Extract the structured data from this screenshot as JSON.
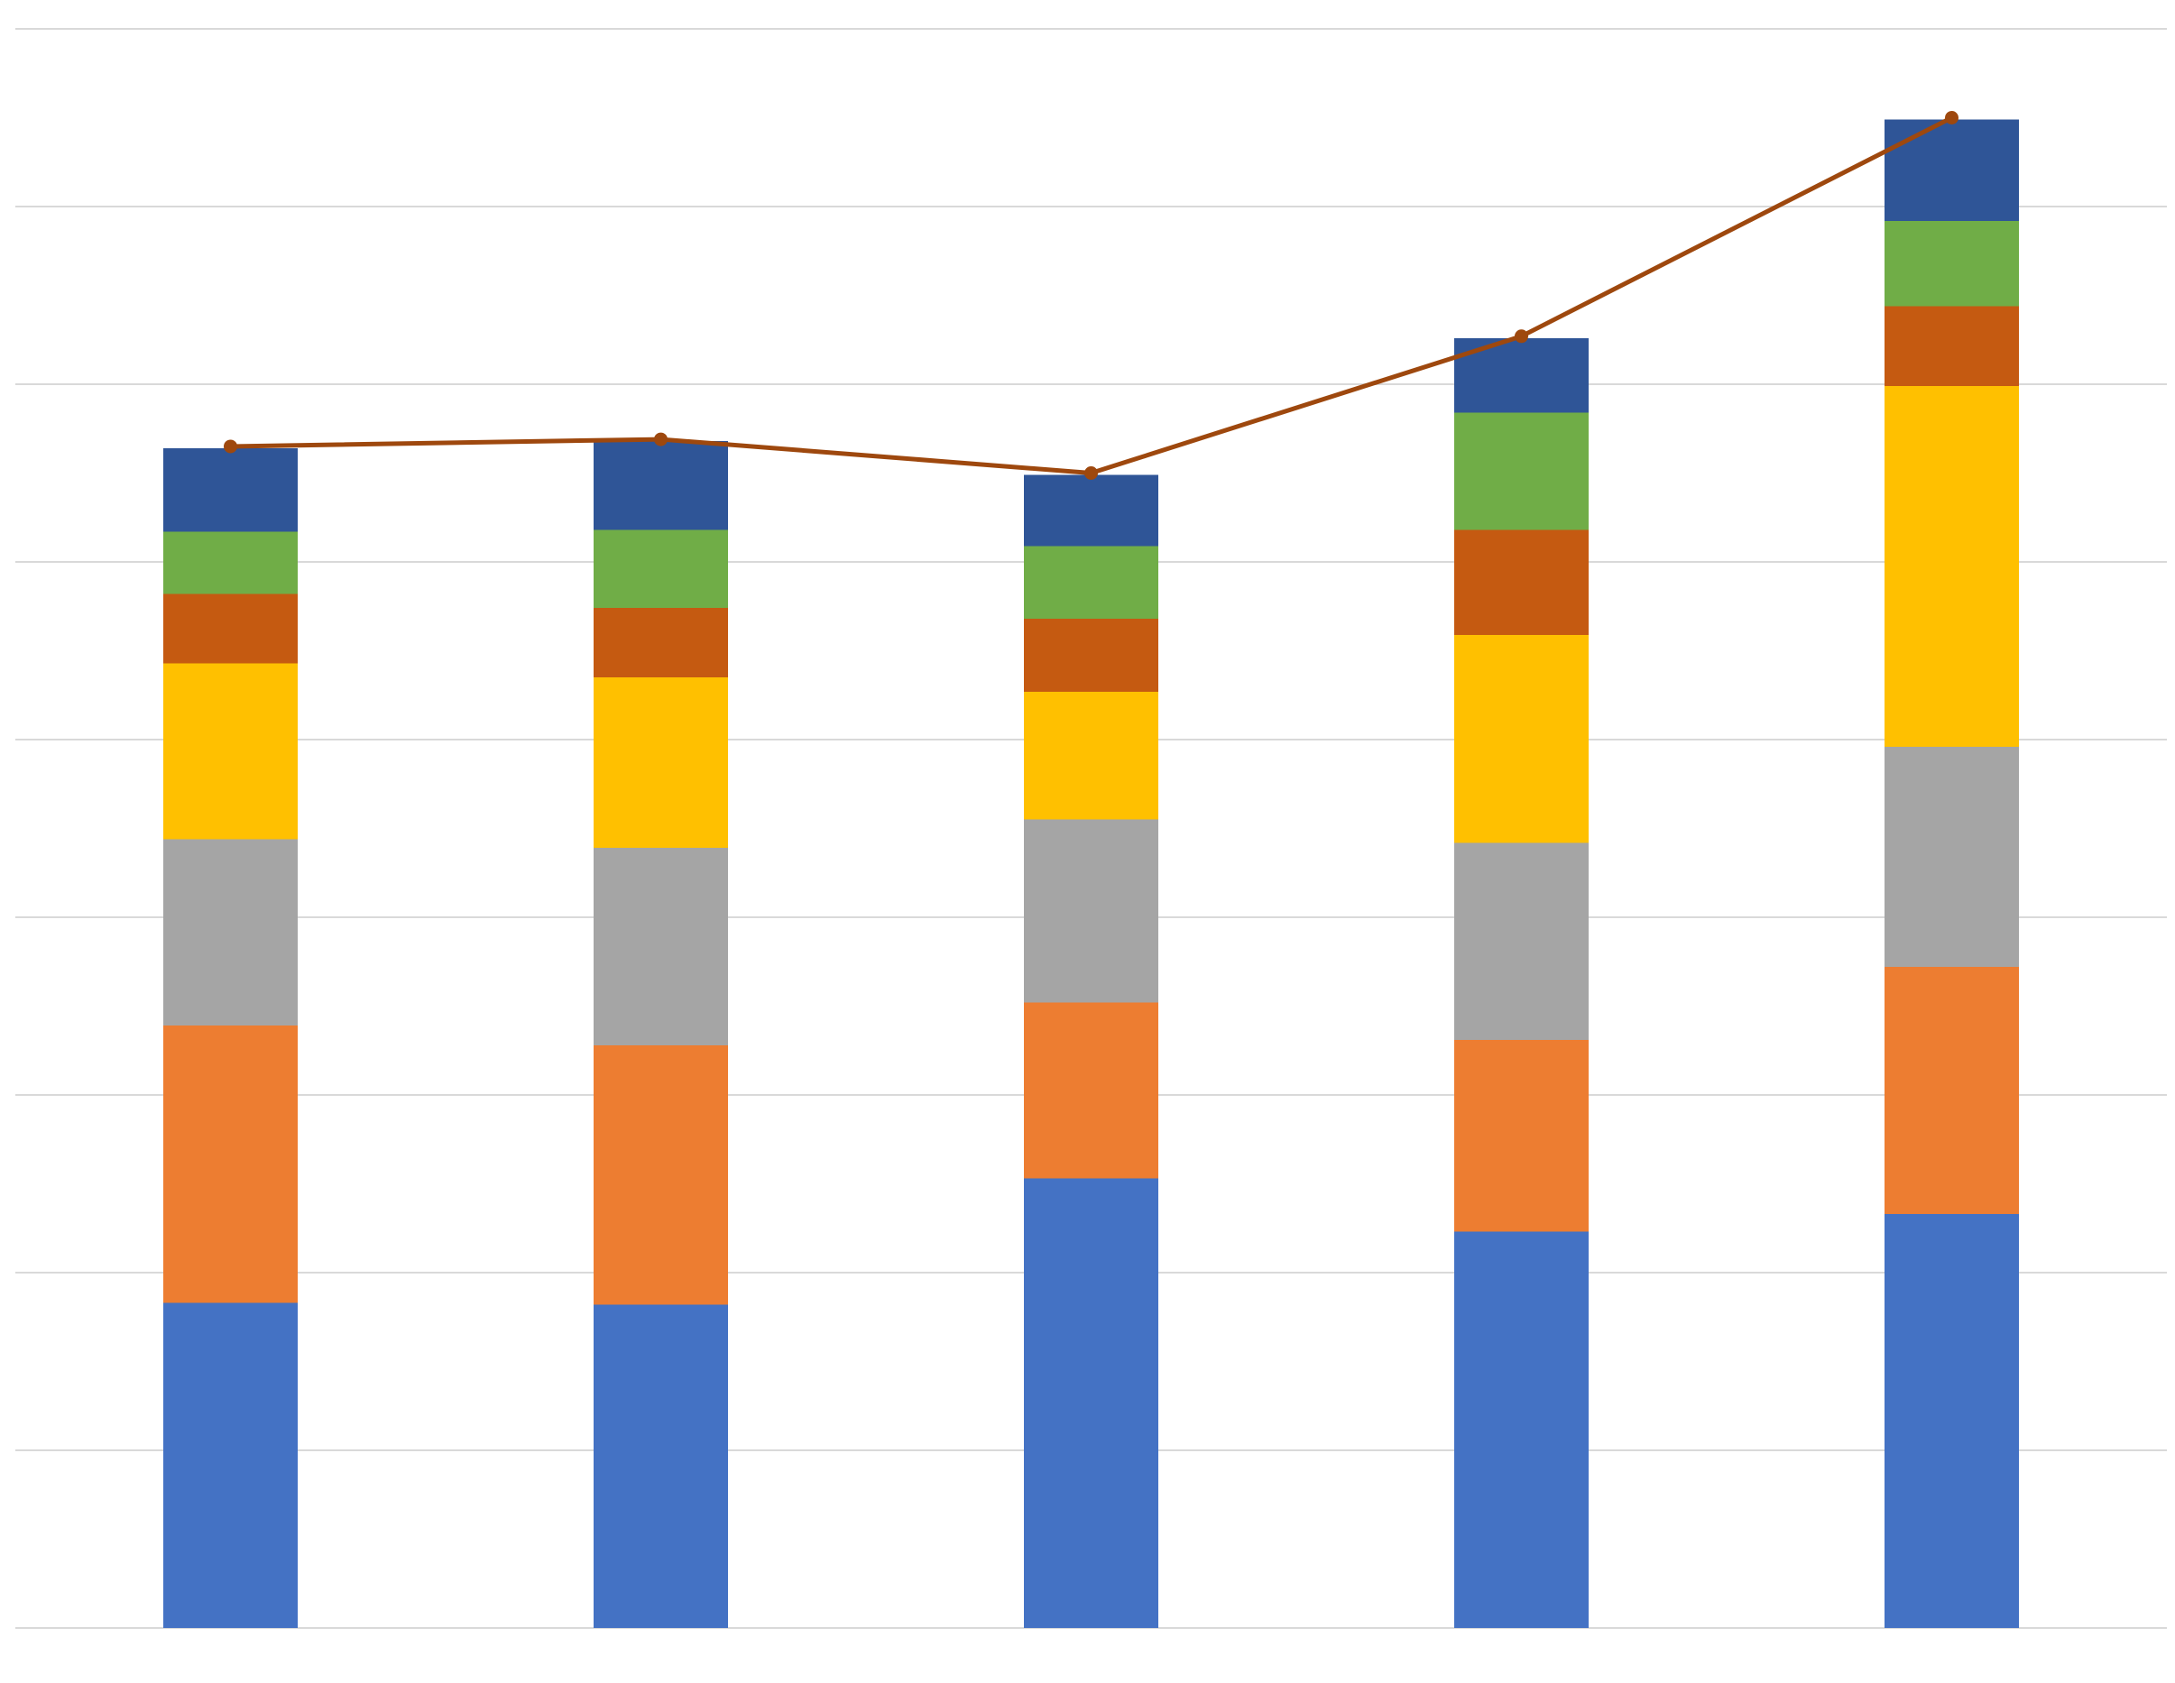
{
  "chart_data": {
    "type": "bar",
    "stacked": true,
    "title": "",
    "xlabel": "",
    "ylabel": "",
    "ylim": [
      0,
      9
    ],
    "y_gridlines": [
      0,
      1,
      2,
      3,
      4,
      5,
      6,
      7,
      8,
      9
    ],
    "grid": true,
    "legend": "none",
    "categories": [
      "",
      "",
      "",
      "",
      ""
    ],
    "series": [
      {
        "color": "#4472C4",
        "values": [
          1.83,
          1.82,
          2.53,
          2.23,
          2.33
        ]
      },
      {
        "color": "#ED7D31",
        "values": [
          1.56,
          1.46,
          0.99,
          1.08,
          1.39
        ]
      },
      {
        "color": "#A5A5A5",
        "values": [
          1.05,
          1.11,
          1.03,
          1.11,
          1.24
        ]
      },
      {
        "color": "#FFC000",
        "values": [
          0.99,
          0.96,
          0.72,
          1.17,
          2.03
        ]
      },
      {
        "color": "#C55A11",
        "values": [
          0.39,
          0.39,
          0.41,
          0.59,
          0.45
        ]
      },
      {
        "color": "#70AD47",
        "values": [
          0.35,
          0.44,
          0.41,
          0.66,
          0.48
        ]
      },
      {
        "color": "#2F5597",
        "values": [
          0.47,
          0.5,
          0.4,
          0.42,
          0.57
        ]
      }
    ],
    "line_series": {
      "color": "#9E480E",
      "values": [
        6.65,
        6.69,
        6.5,
        7.27,
        8.5
      ]
    }
  }
}
